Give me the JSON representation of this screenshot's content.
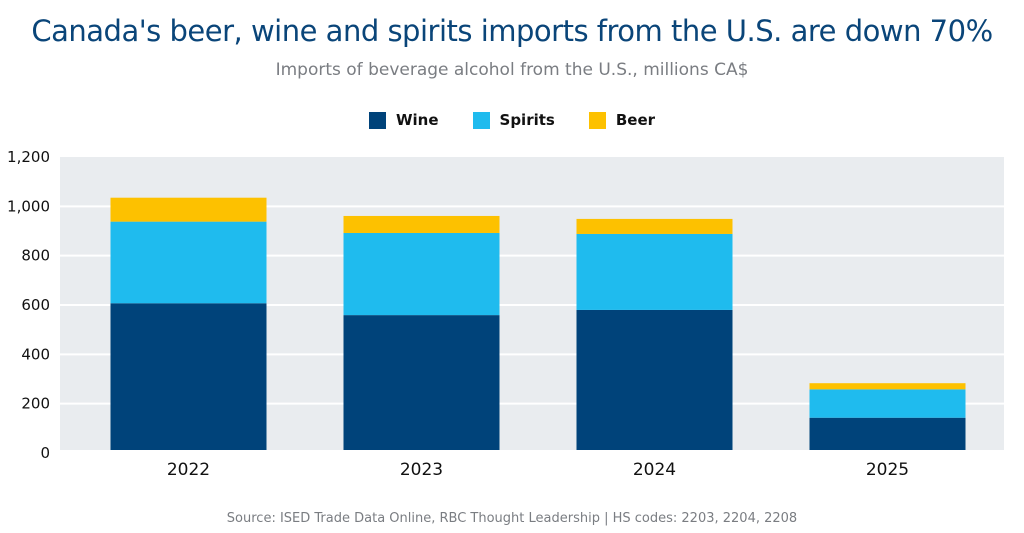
{
  "chart_data": {
    "type": "bar",
    "stacked": true,
    "title": "Canada's beer, wine and spirits imports from the U.S. are down 70%",
    "subtitle": "Imports of beverage alcohol from the U.S., millions CA$",
    "source": "Source: ISED Trade Data Online, RBC Thought Leadership | HS codes: 2203, 2204, 2208",
    "categories": [
      "2022",
      "2023",
      "2024",
      "2025"
    ],
    "series": [
      {
        "name": "Wine",
        "color": "#00437a",
        "values": [
          607,
          559,
          580,
          143
        ]
      },
      {
        "name": "Spirits",
        "color": "#1fbbee",
        "values": [
          331,
          333,
          308,
          115
        ]
      },
      {
        "name": "Beer",
        "color": "#fdc100",
        "values": [
          97,
          69,
          61,
          25
        ]
      }
    ],
    "ylim": [
      0,
      1200
    ],
    "yticks": [
      0,
      200,
      400,
      600,
      800,
      1000,
      1200
    ],
    "ytick_labels": [
      "0",
      "200",
      "400",
      "600",
      "800",
      "1,000",
      "1,200"
    ],
    "grid": true,
    "legend": "top-center",
    "plot_background": "#e9ecef"
  }
}
